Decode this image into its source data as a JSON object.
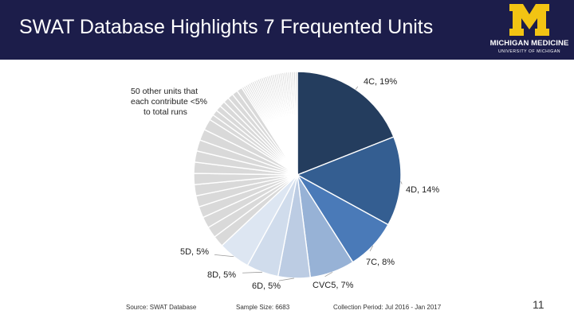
{
  "header": {
    "title": "SWAT Database Highlights 7 Frequented Units",
    "background_color": "#1c1d4a"
  },
  "logo": {
    "text": "MICHIGAN MEDICINE",
    "subtext": "UNIVERSITY OF MICHIGAN",
    "maize_color": "#f2c413"
  },
  "chart_data": {
    "type": "pie",
    "title": "",
    "slices": [
      {
        "label": "4C, 19%",
        "value": 19,
        "color": "#243d5e"
      },
      {
        "label": "4D, 14%",
        "value": 14,
        "color": "#345e91"
      },
      {
        "label": "7C, 8%",
        "value": 8,
        "color": "#4a7ab8"
      },
      {
        "label": "CVC5, 7%",
        "value": 7,
        "color": "#97b2d6"
      },
      {
        "label": "6D, 5%",
        "value": 5,
        "color": "#bccce3"
      },
      {
        "label": "8D, 5%",
        "value": 5,
        "color": "#d0dcec"
      },
      {
        "label": "5D, 5%",
        "value": 5,
        "color": "#dde6f2"
      }
    ],
    "other": {
      "count": 50,
      "total_percent": 37,
      "color": "#d9d9d9",
      "label_lines": [
        "50 other units that",
        "each contribute <5%",
        "to total runs"
      ]
    }
  },
  "footer": {
    "source": "Source: SWAT Database",
    "sample_size": "Sample Size: 6683",
    "collection_period": "Collection Period: Jul 2016 - Jan 2017"
  },
  "page_number": "11"
}
